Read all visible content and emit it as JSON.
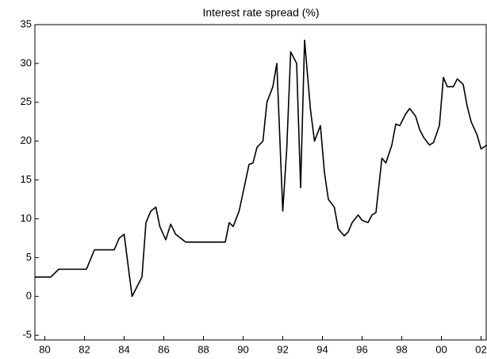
{
  "chart_data": {
    "type": "line",
    "title": "Interest rate spread (%)",
    "x": [
      1979.5,
      1980.3,
      1980.7,
      1982.1,
      1982.5,
      1983.5,
      1983.75,
      1984.0,
      1984.1,
      1984.4,
      1984.9,
      1985.1,
      1985.35,
      1985.6,
      1985.8,
      1986.1,
      1986.35,
      1986.6,
      1987.1,
      1989.1,
      1989.3,
      1989.5,
      1989.8,
      1990.3,
      1990.5,
      1990.7,
      1991.0,
      1991.2,
      1991.5,
      1991.7,
      1992.0,
      1992.2,
      1992.4,
      1992.7,
      1992.9,
      1993.1,
      1993.4,
      1993.6,
      1993.9,
      1994.1,
      1994.3,
      1994.6,
      1994.8,
      1995.1,
      1995.3,
      1995.5,
      1995.8,
      1996.0,
      1996.3,
      1996.5,
      1996.7,
      1997.0,
      1997.2,
      1997.5,
      1997.7,
      1997.9,
      1998.2,
      1998.4,
      1998.7,
      1998.9,
      1999.1,
      1999.4,
      1999.6,
      1999.9,
      2000.1,
      2000.3,
      2000.6,
      2000.8,
      2001.1,
      2001.3,
      2001.5,
      2001.8,
      2002.0,
      2002.3
    ],
    "series": [
      {
        "name": "Interest rate spread (%)",
        "color": "#000000",
        "values": [
          2.5,
          2.5,
          3.5,
          3.5,
          6,
          6,
          7.5,
          8,
          6,
          0,
          2.5,
          9.5,
          11,
          11.5,
          9,
          7.3,
          9.3,
          8,
          7,
          7,
          9.5,
          9,
          11,
          17,
          17.2,
          19.2,
          20,
          25,
          27,
          30,
          11,
          19,
          31.5,
          30,
          14,
          33,
          24,
          20,
          22,
          16,
          12.5,
          11.5,
          8.7,
          7.8,
          8.3,
          9.5,
          10.5,
          9.8,
          9.5,
          10.5,
          10.8,
          17.8,
          17.2,
          19.5,
          22.2,
          22,
          23.5,
          24.2,
          23.2,
          21.5,
          20.5,
          19.5,
          19.8,
          22,
          28.2,
          27,
          27,
          28,
          27.3,
          24.5,
          22.5,
          20.8,
          19,
          19.5
        ]
      }
    ],
    "xlim": [
      1979.5,
      2002.3
    ],
    "xticks": [
      {
        "value": 1980,
        "label": "80"
      },
      {
        "value": 1982,
        "label": "82"
      },
      {
        "value": 1984,
        "label": "84"
      },
      {
        "value": 1986,
        "label": "86"
      },
      {
        "value": 1988,
        "label": "88"
      },
      {
        "value": 1990,
        "label": "90"
      },
      {
        "value": 1992,
        "label": "92"
      },
      {
        "value": 1994,
        "label": "94"
      },
      {
        "value": 1996,
        "label": "96"
      },
      {
        "value": 1998,
        "label": "98"
      },
      {
        "value": 2000,
        "label": "00"
      },
      {
        "value": 2002,
        "label": "02"
      }
    ],
    "ylim": [
      -5.6,
      35
    ],
    "yticks": [
      -5,
      0,
      5,
      10,
      15,
      20,
      25,
      30,
      35
    ]
  }
}
